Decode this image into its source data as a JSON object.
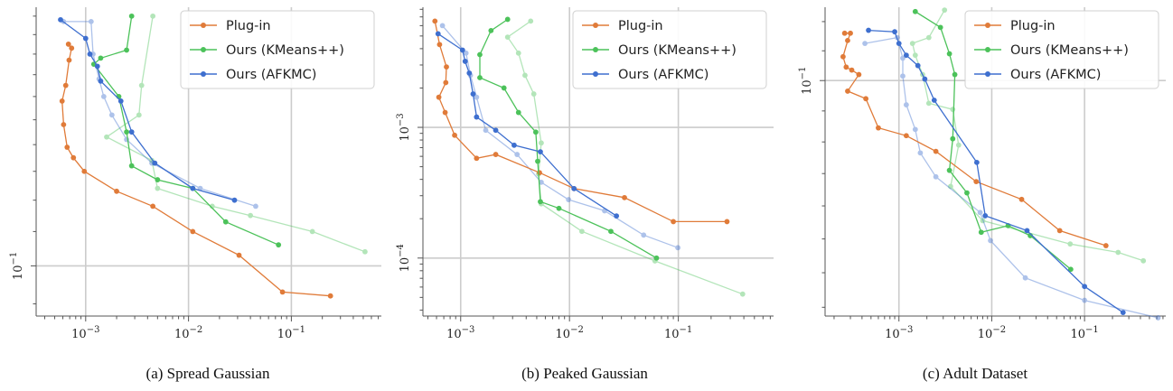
{
  "colors": {
    "plugin": "#e07b39",
    "kmeans": "#4cc25a",
    "afkmc": "#3e6fcf",
    "grid": "#cccccc",
    "axis": "#555555"
  },
  "legend": [
    "Plug-in",
    "Ours (KMeans++)",
    "Ours (AFKMC)"
  ],
  "captions": [
    "(a) Spread Gaussian",
    "(b) Peaked Gaussian",
    "(c) Adult Dataset"
  ],
  "chart_data": [
    {
      "type": "line",
      "xscale": "log",
      "yscale": "log",
      "xlim": [
        0.00033,
        0.75
      ],
      "ylim": [
        0.087,
        0.205
      ],
      "xticks": [
        {
          "value": 0.001,
          "base": "10",
          "exp": "−3"
        },
        {
          "value": 0.01,
          "base": "10",
          "exp": "−2"
        },
        {
          "value": 0.1,
          "base": "10",
          "exp": "−1"
        }
      ],
      "yticks": [
        {
          "value": 0.1,
          "base": "10",
          "exp": "−1"
        }
      ],
      "y_minor": [
        0.09,
        0.11,
        0.12,
        0.13,
        0.14,
        0.15,
        0.16,
        0.17,
        0.18,
        0.19,
        0.2
      ],
      "grid": true,
      "legend_position": "top-right",
      "series": [
        {
          "name": "Plug-in",
          "color_key": "plugin",
          "style": "main",
          "points": [
            [
              0.00068,
              0.185
            ],
            [
              0.00073,
              0.183
            ],
            [
              0.00069,
              0.177
            ],
            [
              0.00064,
              0.165
            ],
            [
              0.00059,
              0.158
            ],
            [
              0.00061,
              0.148
            ],
            [
              0.00066,
              0.139
            ],
            [
              0.00076,
              0.135
            ],
            [
              0.00097,
              0.13
            ],
            [
              0.002,
              0.123
            ],
            [
              0.0045,
              0.118
            ],
            [
              0.011,
              0.11
            ],
            [
              0.031,
              0.103
            ],
            [
              0.082,
              0.093
            ],
            [
              0.24,
              0.092
            ]
          ]
        },
        {
          "name": "Ours (KMeans++)",
          "color_key": "kmeans",
          "style": "main",
          "points": [
            [
              0.0028,
              0.2
            ],
            [
              0.0025,
              0.182
            ],
            [
              0.0014,
              0.178
            ],
            [
              0.0012,
              0.175
            ],
            [
              0.0021,
              0.16
            ],
            [
              0.0025,
              0.145
            ],
            [
              0.0028,
              0.132
            ],
            [
              0.005,
              0.127
            ],
            [
              0.011,
              0.124
            ],
            [
              0.023,
              0.113
            ],
            [
              0.075,
              0.106
            ]
          ]
        },
        {
          "name": "Ours (KMeans++)",
          "color_key": "kmeans",
          "style": "faded",
          "points": [
            [
              0.0045,
              0.2
            ],
            [
              0.0035,
              0.165
            ],
            [
              0.0033,
              0.152
            ],
            [
              0.0016,
              0.143
            ],
            [
              0.0044,
              0.134
            ],
            [
              0.005,
              0.124
            ],
            [
              0.017,
              0.118
            ],
            [
              0.04,
              0.115
            ],
            [
              0.16,
              0.11
            ],
            [
              0.52,
              0.104
            ]
          ]
        },
        {
          "name": "Ours (AFKMC)",
          "color_key": "afkmc",
          "style": "main",
          "points": [
            [
              0.00057,
              0.198
            ],
            [
              0.001,
              0.188
            ],
            [
              0.0011,
              0.18
            ],
            [
              0.0013,
              0.174
            ],
            [
              0.0014,
              0.167
            ],
            [
              0.0022,
              0.158
            ],
            [
              0.0028,
              0.145
            ],
            [
              0.0047,
              0.133
            ],
            [
              0.011,
              0.124
            ],
            [
              0.028,
              0.12
            ]
          ]
        },
        {
          "name": "Ours (AFKMC)",
          "color_key": "afkmc",
          "style": "faded",
          "points": [
            [
              0.00061,
              0.197
            ],
            [
              0.00113,
              0.197
            ],
            [
              0.00118,
              0.18
            ],
            [
              0.00135,
              0.168
            ],
            [
              0.0015,
              0.16
            ],
            [
              0.0018,
              0.152
            ],
            [
              0.0025,
              0.142
            ],
            [
              0.0044,
              0.133
            ],
            [
              0.013,
              0.124
            ],
            [
              0.045,
              0.118
            ]
          ]
        }
      ]
    },
    {
      "type": "line",
      "xscale": "log",
      "yscale": "log",
      "xlim": [
        0.00045,
        0.75
      ],
      "ylim": [
        3.6e-05,
        0.0083
      ],
      "xticks": [
        {
          "value": 0.001,
          "base": "10",
          "exp": "−3"
        },
        {
          "value": 0.01,
          "base": "10",
          "exp": "−2"
        },
        {
          "value": 0.1,
          "base": "10",
          "exp": "−1"
        }
      ],
      "yticks": [
        {
          "value": 0.0001,
          "base": "10",
          "exp": "−4"
        },
        {
          "value": 0.001,
          "base": "10",
          "exp": "−3"
        }
      ],
      "y_minor": [
        4e-05,
        5e-05,
        6e-05,
        7e-05,
        8e-05,
        9e-05,
        0.0002,
        0.0003,
        0.0004,
        0.0005,
        0.0006,
        0.0007,
        0.0008,
        0.0009,
        0.002,
        0.003,
        0.004,
        0.005,
        0.006,
        0.007,
        0.008
      ],
      "grid": true,
      "legend_position": "top-right",
      "series": [
        {
          "name": "Plug-in",
          "color_key": "plugin",
          "style": "main",
          "points": [
            [
              0.00058,
              0.0065
            ],
            [
              0.00064,
              0.0043
            ],
            [
              0.00074,
              0.0029
            ],
            [
              0.00073,
              0.0022
            ],
            [
              0.00063,
              0.0017
            ],
            [
              0.00072,
              0.0013
            ],
            [
              0.00088,
              0.00087
            ],
            [
              0.0014,
              0.00058
            ],
            [
              0.0021,
              0.00062
            ],
            [
              0.0053,
              0.00045
            ],
            [
              0.011,
              0.00034
            ],
            [
              0.032,
              0.00029
            ],
            [
              0.09,
              0.00019
            ],
            [
              0.28,
              0.00019
            ]
          ]
        },
        {
          "name": "Ours (KMeans++)",
          "color_key": "kmeans",
          "style": "main",
          "points": [
            [
              0.0027,
              0.0067
            ],
            [
              0.0019,
              0.0055
            ],
            [
              0.0015,
              0.0036
            ],
            [
              0.0015,
              0.0024
            ],
            [
              0.0025,
              0.002
            ],
            [
              0.0034,
              0.0013
            ],
            [
              0.0049,
              0.00092
            ],
            [
              0.0051,
              0.00055
            ],
            [
              0.0054,
              0.00027
            ],
            [
              0.008,
              0.00024
            ],
            [
              0.024,
              0.00016
            ],
            [
              0.063,
              0.0001
            ]
          ]
        },
        {
          "name": "Ours (KMeans++)",
          "color_key": "kmeans",
          "style": "faded",
          "points": [
            [
              0.0044,
              0.0065
            ],
            [
              0.0027,
              0.0049
            ],
            [
              0.0034,
              0.0037
            ],
            [
              0.0039,
              0.0025
            ],
            [
              0.0047,
              0.0018
            ],
            [
              0.0055,
              0.00076
            ],
            [
              0.0052,
              0.00044
            ],
            [
              0.0055,
              0.00026
            ],
            [
              0.013,
              0.00016
            ],
            [
              0.061,
              9.5e-05
            ],
            [
              0.39,
              5.3e-05
            ]
          ]
        },
        {
          "name": "Ours (AFKMC)",
          "color_key": "afkmc",
          "style": "main",
          "points": [
            [
              0.00062,
              0.0052
            ],
            [
              0.00104,
              0.0039
            ],
            [
              0.0011,
              0.0032
            ],
            [
              0.0012,
              0.0026
            ],
            [
              0.0013,
              0.0018
            ],
            [
              0.0014,
              0.0012
            ],
            [
              0.0021,
              0.00095
            ],
            [
              0.0031,
              0.00073
            ],
            [
              0.0054,
              0.00065
            ],
            [
              0.011,
              0.00034
            ],
            [
              0.027,
              0.00021
            ]
          ]
        },
        {
          "name": "Ours (AFKMC)",
          "color_key": "afkmc",
          "style": "faded",
          "points": [
            [
              0.00068,
              0.006
            ],
            [
              0.00112,
              0.0037
            ],
            [
              0.00123,
              0.0025
            ],
            [
              0.0014,
              0.0017
            ],
            [
              0.0017,
              0.00095
            ],
            [
              0.0033,
              0.00062
            ],
            [
              0.0055,
              0.00038
            ],
            [
              0.0098,
              0.00028
            ],
            [
              0.021,
              0.00023
            ],
            [
              0.048,
              0.00015
            ],
            [
              0.099,
              0.00012
            ]
          ]
        }
      ]
    },
    {
      "type": "line",
      "xscale": "log",
      "yscale": "log",
      "xlim": [
        0.00016,
        0.75
      ],
      "ylim": [
        0.0855,
        0.105
      ],
      "xticks": [
        {
          "value": 0.001,
          "base": "10",
          "exp": "−3"
        },
        {
          "value": 0.01,
          "base": "10",
          "exp": "−2"
        },
        {
          "value": 0.1,
          "base": "10",
          "exp": "−1"
        }
      ],
      "yticks": [
        {
          "value": 0.1,
          "base": "10",
          "exp": "−1"
        }
      ],
      "y_minor": [
        0.086,
        0.088,
        0.09,
        0.092,
        0.094,
        0.096,
        0.098,
        0.102,
        0.104
      ],
      "grid": true,
      "legend_position": "top-right",
      "series": [
        {
          "name": "Plug-in",
          "color_key": "plugin",
          "style": "main",
          "points": [
            [
              0.00026,
              0.1032
            ],
            [
              0.0003,
              0.1032
            ],
            [
              0.00028,
              0.1027
            ],
            [
              0.00025,
              0.1016
            ],
            [
              0.00027,
              0.1009
            ],
            [
              0.00031,
              0.1007
            ],
            [
              0.00037,
              0.1004
            ],
            [
              0.00028,
              0.0993
            ],
            [
              0.00044,
              0.0988
            ],
            [
              0.0006,
              0.0969
            ],
            [
              0.0012,
              0.0964
            ],
            [
              0.0025,
              0.0954
            ],
            [
              0.0068,
              0.0935
            ],
            [
              0.021,
              0.0924
            ],
            [
              0.054,
              0.0905
            ],
            [
              0.17,
              0.0896
            ]
          ]
        },
        {
          "name": "Ours (KMeans++)",
          "color_key": "kmeans",
          "style": "main",
          "points": [
            [
              0.0015,
              0.1047
            ],
            [
              0.0028,
              0.1036
            ],
            [
              0.0035,
              0.1018
            ],
            [
              0.004,
              0.1004
            ],
            [
              0.0038,
              0.0962
            ],
            [
              0.0035,
              0.0942
            ],
            [
              0.0054,
              0.0928
            ],
            [
              0.0077,
              0.0904
            ],
            [
              0.015,
              0.0908
            ],
            [
              0.026,
              0.0902
            ],
            [
              0.071,
              0.0882
            ]
          ]
        },
        {
          "name": "Ours (KMeans++)",
          "color_key": "kmeans",
          "style": "faded",
          "points": [
            [
              0.0031,
              0.1048
            ],
            [
              0.0021,
              0.1029
            ],
            [
              0.0014,
              0.1025
            ],
            [
              0.0015,
              0.1017
            ],
            [
              0.0018,
              0.1004
            ],
            [
              0.0021,
              0.0985
            ],
            [
              0.0038,
              0.0981
            ],
            [
              0.0044,
              0.0958
            ],
            [
              0.0036,
              0.0932
            ],
            [
              0.008,
              0.0911
            ],
            [
              0.07,
              0.0897
            ],
            [
              0.23,
              0.0892
            ],
            [
              0.43,
              0.0887
            ]
          ]
        },
        {
          "name": "Ours (AFKMC)",
          "color_key": "afkmc",
          "style": "main",
          "points": [
            [
              0.00047,
              0.1034
            ],
            [
              0.0009,
              0.1033
            ],
            [
              0.001,
              0.1025
            ],
            [
              0.0012,
              0.1017
            ],
            [
              0.0016,
              0.101
            ],
            [
              0.0019,
              0.1001
            ],
            [
              0.0024,
              0.0987
            ],
            [
              0.0069,
              0.0947
            ],
            [
              0.0085,
              0.0914
            ],
            [
              0.024,
              0.0905
            ],
            [
              0.1,
              0.0872
            ],
            [
              0.26,
              0.0857
            ]
          ]
        },
        {
          "name": "Ours (AFKMC)",
          "color_key": "afkmc",
          "style": "faded",
          "points": [
            [
              0.00043,
              0.1025
            ],
            [
              0.00096,
              0.1029
            ],
            [
              0.0011,
              0.1015
            ],
            [
              0.0011,
              0.1003
            ],
            [
              0.0012,
              0.0984
            ],
            [
              0.0015,
              0.0968
            ],
            [
              0.0017,
              0.0953
            ],
            [
              0.0025,
              0.0938
            ],
            [
              0.0075,
              0.0916
            ],
            [
              0.0097,
              0.0899
            ],
            [
              0.023,
              0.0877
            ],
            [
              0.1,
              0.0864
            ],
            [
              0.62,
              0.0854
            ]
          ]
        }
      ]
    }
  ]
}
